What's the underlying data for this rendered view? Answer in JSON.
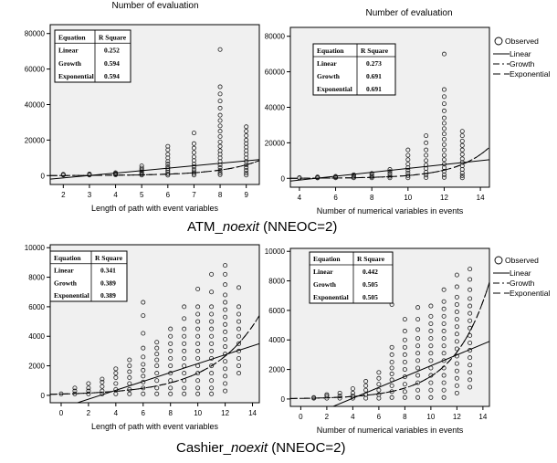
{
  "legend": {
    "observed": "Observed",
    "linear": "Linear",
    "growth": "Growth",
    "exponential": "Exponential"
  },
  "captions": {
    "atm": {
      "name": "ATM_",
      "italic": "noexit",
      "rest": " (NNEOC=2)"
    },
    "cashier": {
      "name": "Cashier_",
      "italic": "noexit",
      "rest": " (NNEOC=2)"
    }
  },
  "chart_data": [
    {
      "type": "scatter",
      "title": "Number of evaluation",
      "xlabel": "Length of path with event variables",
      "ylabel": "",
      "xlim": [
        1.5,
        9.5
      ],
      "ylim": [
        -5000,
        85000
      ],
      "xticks": [
        2,
        3,
        4,
        5,
        6,
        7,
        8,
        9
      ],
      "yticks": [
        0,
        20000,
        40000,
        60000,
        80000
      ],
      "table": {
        "headers": [
          "Equation",
          "R Square"
        ],
        "rows": [
          [
            "Linear",
            "0.252"
          ],
          [
            "Growth",
            "0.594"
          ],
          [
            "Exponential",
            "0.594"
          ]
        ]
      },
      "fits": {
        "linear": [
          [
            1.5,
            -2000
          ],
          [
            9.5,
            9000
          ]
        ],
        "growth": [
          [
            1.5,
            40
          ],
          [
            9.5,
            8500
          ]
        ],
        "exponential": [
          [
            1.5,
            40
          ],
          [
            9.5,
            8500
          ]
        ]
      },
      "columns": [
        {
          "x": 2,
          "ys": [
            300,
            500,
            700
          ]
        },
        {
          "x": 3,
          "ys": [
            300,
            600,
            900
          ]
        },
        {
          "x": 4,
          "ys": [
            400,
            800,
            1200,
            1600
          ]
        },
        {
          "x": 5,
          "ys": [
            300,
            800,
            1400,
            2200,
            3200,
            4200,
            5500
          ]
        },
        {
          "x": 6,
          "ys": [
            200,
            1000,
            2000,
            3000,
            4000,
            5000,
            6500,
            8000,
            10000,
            12000,
            14500,
            16500
          ]
        },
        {
          "x": 7,
          "ys": [
            300,
            1200,
            2200,
            3500,
            5000,
            6500,
            8500,
            10500,
            13000,
            15500,
            18000,
            24000
          ]
        },
        {
          "x": 8,
          "ys": [
            500,
            1500,
            3000,
            4500,
            6000,
            8000,
            10000,
            12000,
            14000,
            16500,
            19000,
            22000,
            25000,
            28000,
            31000,
            34000,
            38000,
            42000,
            46000,
            50000,
            71000
          ]
        },
        {
          "x": 9,
          "ys": [
            300,
            1500,
            3000,
            4500,
            6000,
            8000,
            10000,
            12000,
            14000,
            16000,
            18000,
            20000,
            22500,
            25000,
            27500
          ]
        }
      ]
    },
    {
      "type": "scatter",
      "title": "Number of evaluation",
      "xlabel": "Number of numerical variables in events",
      "ylabel": "",
      "xlim": [
        3.5,
        14.5
      ],
      "ylim": [
        -5000,
        85000
      ],
      "xticks": [
        4,
        6,
        8,
        10,
        12,
        14
      ],
      "yticks": [
        0,
        20000,
        40000,
        60000,
        80000
      ],
      "table": {
        "headers": [
          "Equation",
          "R Square"
        ],
        "rows": [
          [
            "Linear",
            "0.273"
          ],
          [
            "Growth",
            "0.691"
          ],
          [
            "Exponential",
            "0.691"
          ]
        ]
      },
      "fits": {
        "linear": [
          [
            3.5,
            -1500
          ],
          [
            14.5,
            10500
          ]
        ],
        "growth": [
          [
            3.5,
            50
          ],
          [
            14.5,
            17500
          ]
        ],
        "exponential": [
          [
            3.5,
            50
          ],
          [
            14.5,
            17500
          ]
        ]
      },
      "columns": [
        {
          "x": 4,
          "ys": [
            200,
            400
          ]
        },
        {
          "x": 5,
          "ys": [
            200,
            500,
            800
          ]
        },
        {
          "x": 6,
          "ys": [
            300,
            700,
            1100
          ]
        },
        {
          "x": 7,
          "ys": [
            300,
            800,
            1500,
            2000
          ]
        },
        {
          "x": 8,
          "ys": [
            300,
            1000,
            1800,
            2800
          ]
        },
        {
          "x": 9,
          "ys": [
            300,
            1200,
            2500,
            3800,
            5000
          ]
        },
        {
          "x": 10,
          "ys": [
            300,
            1500,
            3000,
            4500,
            6000,
            8000,
            10500,
            13000,
            16000
          ]
        },
        {
          "x": 11,
          "ys": [
            400,
            1800,
            3500,
            5500,
            7500,
            10000,
            13000,
            16000,
            20000,
            24000
          ]
        },
        {
          "x": 12,
          "ys": [
            500,
            2000,
            4000,
            6000,
            8000,
            10500,
            13000,
            16000,
            19000,
            22000,
            25000,
            28000,
            31000,
            34000,
            38000,
            42000,
            46000,
            50000,
            70000
          ]
        },
        {
          "x": 13,
          "ys": [
            300,
            1500,
            3000,
            5000,
            7000,
            9000,
            11000,
            13500,
            16000,
            18500,
            21000,
            24000,
            26500
          ]
        }
      ]
    },
    {
      "type": "scatter",
      "title": "",
      "xlabel": "Length of path with event variables",
      "ylabel": "",
      "xlim": [
        -0.8,
        14.5
      ],
      "ylim": [
        -500,
        10200
      ],
      "xticks": [
        0,
        2,
        4,
        6,
        8,
        10,
        12,
        14
      ],
      "yticks": [
        0,
        2000,
        4000,
        6000,
        8000,
        10000
      ],
      "table": {
        "headers": [
          "Equation",
          "R Square"
        ],
        "rows": [
          [
            "Linear",
            "0.341"
          ],
          [
            "Growth",
            "0.389"
          ],
          [
            "Exponential",
            "0.389"
          ]
        ]
      },
      "fits": {
        "linear": [
          [
            1.2,
            -500
          ],
          [
            14.5,
            3500
          ]
        ],
        "growth": [
          [
            -0.8,
            70
          ],
          [
            14.5,
            5400
          ]
        ],
        "exponential": [
          [
            -0.8,
            70
          ],
          [
            14.5,
            5400
          ]
        ]
      },
      "columns": [
        {
          "x": 0,
          "ys": [
            100
          ]
        },
        {
          "x": 1,
          "ys": [
            100,
            300,
            500
          ]
        },
        {
          "x": 2,
          "ys": [
            100,
            300,
            500,
            800
          ]
        },
        {
          "x": 3,
          "ys": [
            100,
            300,
            600,
            900,
            1100
          ]
        },
        {
          "x": 4,
          "ys": [
            100,
            400,
            800,
            1200,
            1500,
            1800
          ]
        },
        {
          "x": 5,
          "ys": [
            100,
            400,
            800,
            1200,
            1600,
            2000,
            2400
          ]
        },
        {
          "x": 6,
          "ys": [
            100,
            500,
            900,
            1300,
            1700,
            2100,
            2600,
            3200,
            4200,
            5400,
            6300
          ]
        },
        {
          "x": 7,
          "ys": [
            100,
            500,
            1000,
            1500,
            2000,
            2400,
            2800,
            3200,
            3600
          ]
        },
        {
          "x": 8,
          "ys": [
            100,
            500,
            1000,
            1500,
            2000,
            2500,
            3000,
            3500,
            4000,
            4500
          ]
        },
        {
          "x": 9,
          "ys": [
            100,
            500,
            1000,
            1500,
            2000,
            2500,
            3000,
            3500,
            4000,
            4500,
            5200,
            6000
          ]
        },
        {
          "x": 10,
          "ys": [
            100,
            500,
            1000,
            1500,
            2000,
            2500,
            3000,
            3500,
            4000,
            4500,
            5000,
            5500,
            6000,
            7200
          ]
        },
        {
          "x": 11,
          "ys": [
            100,
            500,
            1000,
            1500,
            2000,
            2500,
            3000,
            3500,
            4000,
            4500,
            5000,
            5500,
            6000,
            7000,
            8200
          ]
        },
        {
          "x": 12,
          "ys": [
            300,
            800,
            1300,
            1800,
            2300,
            2800,
            3300,
            3800,
            4300,
            4800,
            5300,
            5800,
            6300,
            6800,
            7500,
            8200,
            8800
          ]
        },
        {
          "x": 13,
          "ys": [
            1500,
            2000,
            2500,
            3000,
            3500,
            4000,
            4500,
            5000,
            5500,
            6000,
            7300
          ]
        }
      ]
    },
    {
      "type": "scatter",
      "title": "",
      "xlabel": "Number of numerical variables in events",
      "ylabel": "",
      "xlim": [
        -0.8,
        14.5
      ],
      "ylim": [
        -500,
        10200
      ],
      "xticks": [
        0,
        2,
        4,
        6,
        8,
        10,
        12,
        14
      ],
      "yticks": [
        0,
        2000,
        4000,
        6000,
        8000,
        10000
      ],
      "table": {
        "headers": [
          "Equation",
          "R Square"
        ],
        "rows": [
          [
            "Linear",
            "0.442"
          ],
          [
            "Growth",
            "0.505"
          ],
          [
            "Exponential",
            "0.505"
          ]
        ]
      },
      "fits": {
        "linear": [
          [
            2.5,
            -500
          ],
          [
            14.5,
            3900
          ]
        ],
        "growth": [
          [
            -0.8,
            30
          ],
          [
            14.5,
            7900
          ]
        ],
        "exponential": [
          [
            -0.8,
            30
          ],
          [
            14.5,
            7900
          ]
        ]
      },
      "columns": [
        {
          "x": 1,
          "ys": [
            50,
            100
          ]
        },
        {
          "x": 2,
          "ys": [
            50,
            200,
            300
          ]
        },
        {
          "x": 3,
          "ys": [
            50,
            200,
            400
          ]
        },
        {
          "x": 4,
          "ys": [
            50,
            200,
            400,
            700
          ]
        },
        {
          "x": 5,
          "ys": [
            50,
            300,
            600,
            900,
            1200
          ]
        },
        {
          "x": 6,
          "ys": [
            50,
            300,
            600,
            1000,
            1400,
            1800
          ]
        },
        {
          "x": 7,
          "ys": [
            100,
            500,
            900,
            1300,
            1700,
            2100,
            2500,
            3000,
            3500,
            6400
          ]
        },
        {
          "x": 8,
          "ys": [
            100,
            500,
            1000,
            1500,
            2000,
            2500,
            3000,
            3500,
            4000,
            4600,
            5400
          ]
        },
        {
          "x": 9,
          "ys": [
            100,
            600,
            1100,
            1600,
            2100,
            2600,
            3100,
            3600,
            4100,
            4700,
            5400,
            6200
          ]
        },
        {
          "x": 10,
          "ys": [
            100,
            600,
            1100,
            1600,
            2100,
            2600,
            3100,
            3600,
            4100,
            4600,
            5100,
            5600,
            6300
          ]
        },
        {
          "x": 11,
          "ys": [
            100,
            600,
            1100,
            1600,
            2100,
            2600,
            3100,
            3600,
            4100,
            4600,
            5100,
            5600,
            6100,
            6600,
            7400
          ]
        },
        {
          "x": 12,
          "ys": [
            400,
            900,
            1400,
            1900,
            2400,
            2900,
            3400,
            3900,
            4400,
            4900,
            5400,
            5900,
            6400,
            6900,
            7600,
            8400
          ]
        },
        {
          "x": 13,
          "ys": [
            800,
            1300,
            1800,
            2300,
            2800,
            3300,
            3800,
            4300,
            4800,
            5300,
            5800,
            6300,
            6800,
            7400,
            8100,
            8800
          ]
        }
      ]
    }
  ]
}
